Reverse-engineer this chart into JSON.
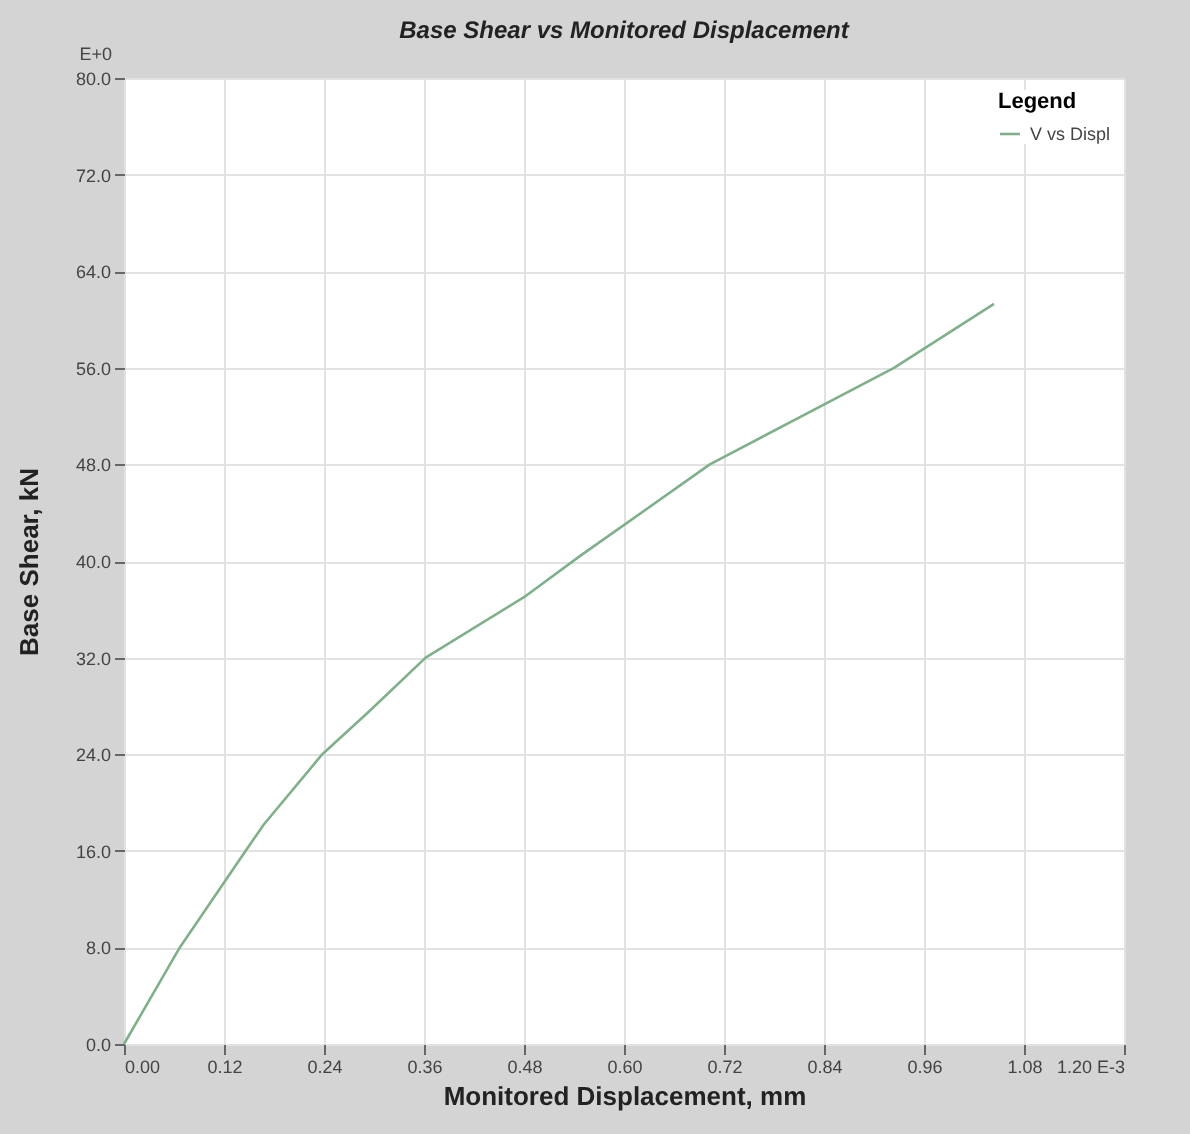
{
  "chart_data": {
    "type": "line",
    "title": "Base Shear vs Monitored Displacement",
    "xlabel": "Monitored Displacement, mm",
    "ylabel": "Base Shear, kN",
    "legend_title": "Legend",
    "annotations": [
      "E+0"
    ],
    "x": [
      0,
      0.067,
      0.146,
      0.168,
      0.238,
      0.295,
      0.362,
      0.48,
      0.547,
      0.703,
      0.924,
      1.044
    ],
    "series": [
      {
        "name": "V vs Displ",
        "color": "#7fb08a",
        "values": [
          0,
          8,
          16,
          18.2,
          24,
          27.6,
          32,
          37,
          40.4,
          48,
          56,
          61.3
        ]
      }
    ],
    "xlim": [
      0,
      1.2
    ],
    "xticks": [
      {
        "value": 0,
        "label": "0.00"
      },
      {
        "value": 0.12,
        "label": "0.12"
      },
      {
        "value": 0.24,
        "label": "0.24"
      },
      {
        "value": 0.36,
        "label": "0.36"
      },
      {
        "value": 0.48,
        "label": "0.48"
      },
      {
        "value": 0.6,
        "label": "0.60"
      },
      {
        "value": 0.72,
        "label": "0.72"
      },
      {
        "value": 0.84,
        "label": "0.84"
      },
      {
        "value": 0.96,
        "label": "0.96"
      },
      {
        "value": 1.08,
        "label": "1.08"
      },
      {
        "value": 1.2,
        "label": "1.20 E-3"
      }
    ],
    "ylim": [
      0,
      80
    ],
    "yticks": [
      {
        "value": 0,
        "label": "0.0"
      },
      {
        "value": 8,
        "label": "8.0"
      },
      {
        "value": 16,
        "label": "16.0"
      },
      {
        "value": 24,
        "label": "24.0"
      },
      {
        "value": 32,
        "label": "32.0"
      },
      {
        "value": 40,
        "label": "40.0"
      },
      {
        "value": 48,
        "label": "48.0"
      },
      {
        "value": 56,
        "label": "56.0"
      },
      {
        "value": 64,
        "label": "64.0"
      },
      {
        "value": 72,
        "label": "72.0"
      },
      {
        "value": 80,
        "label": "80.0"
      }
    ],
    "grid": true,
    "legend": "top right",
    "line_style": "solid"
  }
}
